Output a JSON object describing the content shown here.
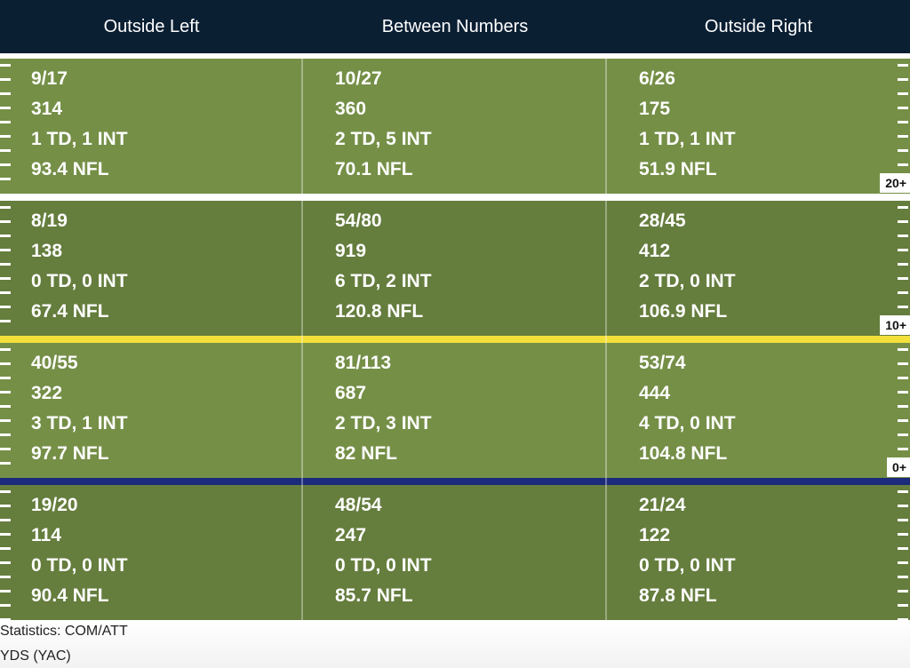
{
  "columns": [
    "Outside Left",
    "Between Numbers",
    "Outside Right"
  ],
  "zones": [
    {
      "label": "20+",
      "cells": [
        [
          "9/17",
          "314",
          "1 TD, 1 INT",
          "93.4 NFL"
        ],
        [
          "10/27",
          "360",
          "2 TD, 5 INT",
          "70.1 NFL"
        ],
        [
          "6/26",
          "175",
          "1 TD, 1 INT",
          "51.9 NFL"
        ]
      ]
    },
    {
      "label": "10+",
      "cells": [
        [
          "8/19",
          "138",
          "0 TD, 0 INT",
          "67.4 NFL"
        ],
        [
          "54/80",
          "919",
          "6 TD, 2 INT",
          "120.8 NFL"
        ],
        [
          "28/45",
          "412",
          "2 TD, 0 INT",
          "106.9 NFL"
        ]
      ]
    },
    {
      "label": "0+",
      "cells": [
        [
          "40/55",
          "322",
          "3 TD, 1 INT",
          "97.7 NFL"
        ],
        [
          "81/113",
          "687",
          "2 TD, 3 INT",
          "82 NFL"
        ],
        [
          "53/74",
          "444",
          "4 TD, 0 INT",
          "104.8 NFL"
        ]
      ]
    },
    {
      "label": "",
      "cells": [
        [
          "19/20",
          "114",
          "0 TD, 0 INT",
          "90.4 NFL"
        ],
        [
          "48/54",
          "247",
          "0 TD, 0 INT",
          "85.7 NFL"
        ],
        [
          "21/24",
          "122",
          "0 TD, 0 INT",
          "87.8 NFL"
        ]
      ]
    }
  ],
  "legend": {
    "line1": "Statistics: COM/ATT",
    "line2": "YDS (YAC)"
  },
  "colors": {
    "header_bg": "#0b1f33",
    "band_light": "#758f47",
    "band_dark": "#657d3d",
    "line_of_scrimmage": "#1b2a7a",
    "first_down_line": "#f4e03a"
  }
}
